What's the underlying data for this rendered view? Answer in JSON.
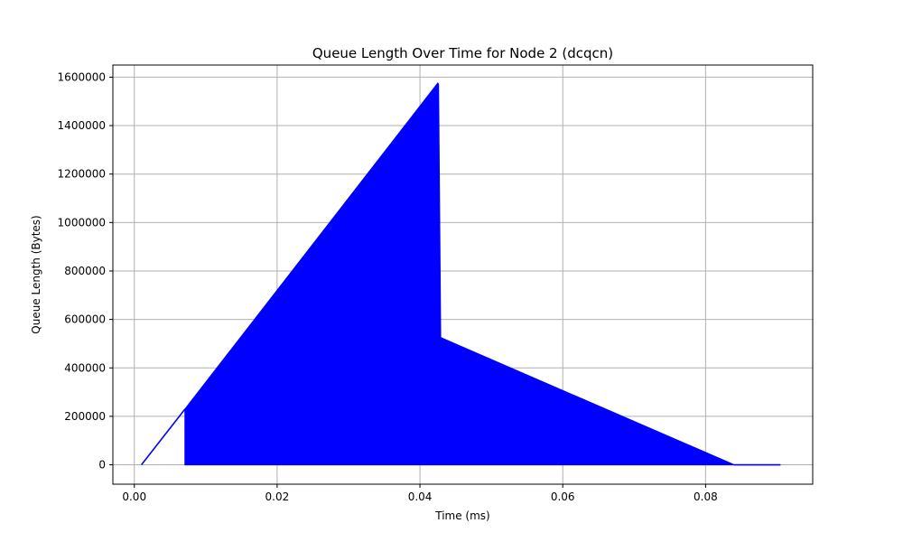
{
  "chart_data": {
    "type": "line",
    "title": "Queue Length Over Time for Node 2 (dcqcn)",
    "xlabel": "Time (ms)",
    "ylabel": "Queue Length (Bytes)",
    "xlim": [
      -0.003,
      0.095
    ],
    "ylim": [
      -80000,
      1650000
    ],
    "grid": true,
    "x_ticks": [
      0.0,
      0.02,
      0.04,
      0.06,
      0.08
    ],
    "x_tick_labels": [
      "0.00",
      "0.02",
      "0.04",
      "0.06",
      "0.08"
    ],
    "y_ticks": [
      0,
      200000,
      400000,
      600000,
      800000,
      1000000,
      1200000,
      1400000,
      1600000
    ],
    "y_tick_labels": [
      "0",
      "200000",
      "400000",
      "600000",
      "800000",
      "1000000",
      "1200000",
      "1400000",
      "1600000"
    ],
    "series": [
      {
        "name": "Queue Length",
        "color": "#0000ff",
        "description_of_shape": "initial linear rise, then rapid oscillation between 0 and an envelope that peaks near 0.0425 ms, drops, and decays to 0",
        "initial_ramp": {
          "x": [
            0.001,
            0.0071
          ],
          "y": [
            0,
            230000
          ]
        },
        "oscillation_envelope": {
          "x": [
            0.0071,
            0.0425,
            0.0426,
            0.0429,
            0.084
          ],
          "y": [
            230000,
            1575000,
            1570000,
            525000,
            0
          ]
        },
        "oscillation_floor": {
          "x": [
            0.0071,
            0.084
          ],
          "y": [
            0,
            0
          ]
        },
        "tail": {
          "x": [
            0.084,
            0.0905
          ],
          "y": [
            0,
            0
          ]
        }
      }
    ]
  }
}
